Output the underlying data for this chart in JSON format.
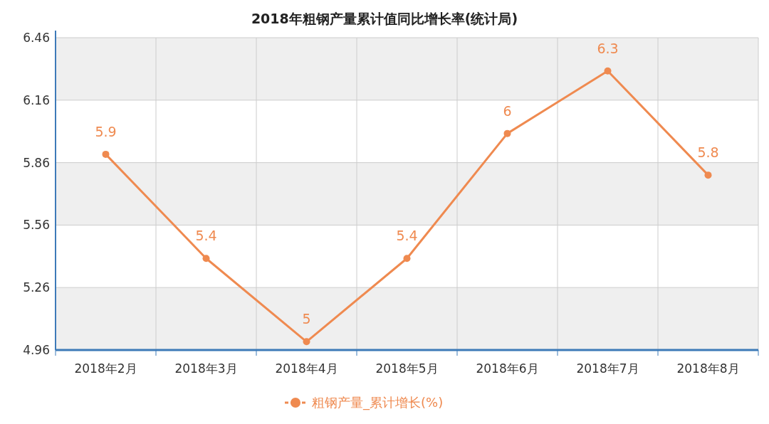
{
  "chart_data": {
    "type": "line",
    "title": "2018年粗钢产量累计值同比增长率(统计局)",
    "categories": [
      "2018年2月",
      "2018年3月",
      "2018年4月",
      "2018年5月",
      "2018年6月",
      "2018年7月",
      "2018年8月"
    ],
    "series": [
      {
        "name": "粗钢产量_累计增长(%)",
        "color": "#ef8a50",
        "values": [
          5.9,
          5.4,
          5,
          5.4,
          6,
          6.3,
          5.8
        ]
      }
    ],
    "ylim": [
      4.96,
      6.46
    ],
    "yticks": [
      4.96,
      5.26,
      5.56,
      5.86,
      6.16,
      6.46
    ],
    "grid": true,
    "legend": "bottom",
    "marker": "circle",
    "line_style": "solid",
    "data_labels": true
  }
}
